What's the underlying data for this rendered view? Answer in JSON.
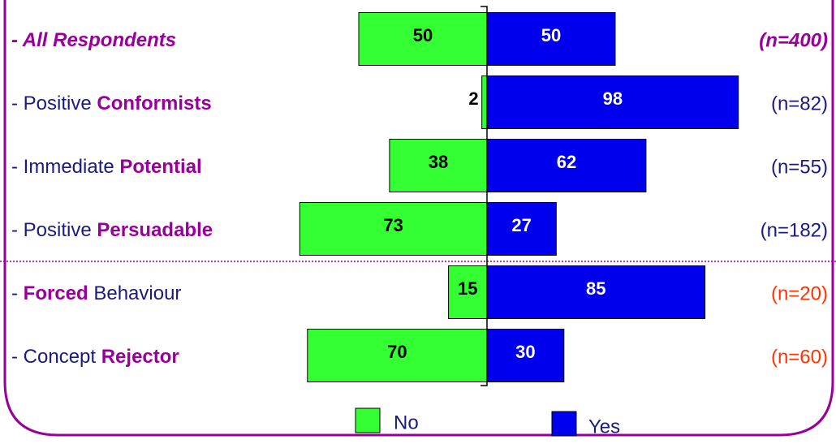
{
  "chart_data": {
    "type": "diverging-bar",
    "categories": [
      [
        {
          "text": "- All Respondents",
          "strong": true,
          "italic": true
        }
      ],
      [
        {
          "text": "- Positive "
        },
        {
          "text": "Conformists",
          "strong": true
        }
      ],
      [
        {
          "text": "- Immediate "
        },
        {
          "text": "Potential",
          "strong": true
        }
      ],
      [
        {
          "text": "- Positive "
        },
        {
          "text": "Persuadable",
          "strong": true
        }
      ],
      [
        {
          "text": "- "
        },
        {
          "text": "Forced",
          "strong": true
        },
        {
          "text": " Behaviour"
        }
      ],
      [
        {
          "text": "- Concept "
        },
        {
          "text": "Rejector",
          "strong": true
        }
      ]
    ],
    "sample_sizes": [
      "(n=400)",
      "(n=82)",
      "(n=55)",
      "(n=182)",
      "(n=20)",
      "(n=60)"
    ],
    "sample_size_colors": [
      "#990099",
      "#1a1a80",
      "#1a1a80",
      "#1a1a80",
      "#ff3300",
      "#ff3300"
    ],
    "series": [
      {
        "name": "No",
        "color": "#33ff33",
        "values": [
          50,
          2,
          38,
          73,
          15,
          70
        ]
      },
      {
        "name": "Yes",
        "color": "#0000ee",
        "values": [
          50,
          98,
          62,
          27,
          85,
          30
        ]
      }
    ]
  }
}
